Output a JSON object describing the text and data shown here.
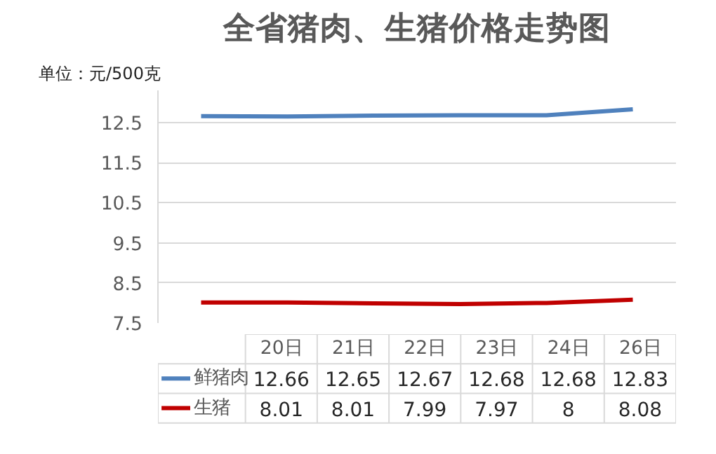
{
  "chart_data": {
    "type": "line",
    "title": "全省猪肉、生猪价格走势图",
    "annotations": [
      "单位：元/500克"
    ],
    "categories": [
      "20日",
      "21日",
      "22日",
      "23日",
      "24日",
      "26日"
    ],
    "series": [
      {
        "name": "鲜猪肉",
        "color": "#4f81bd",
        "values": [
          12.66,
          12.65,
          12.67,
          12.68,
          12.68,
          12.83
        ]
      },
      {
        "name": "生猪",
        "color": "#c00000",
        "values": [
          8.01,
          8.01,
          7.99,
          7.97,
          8,
          8.08
        ]
      }
    ],
    "ylim": [
      7.5,
      13.3
    ],
    "yticks": [
      7.5,
      8.5,
      9.5,
      10.5,
      11.5,
      12.5
    ],
    "grid": "y",
    "legend": "bottom",
    "data_labels": true
  }
}
